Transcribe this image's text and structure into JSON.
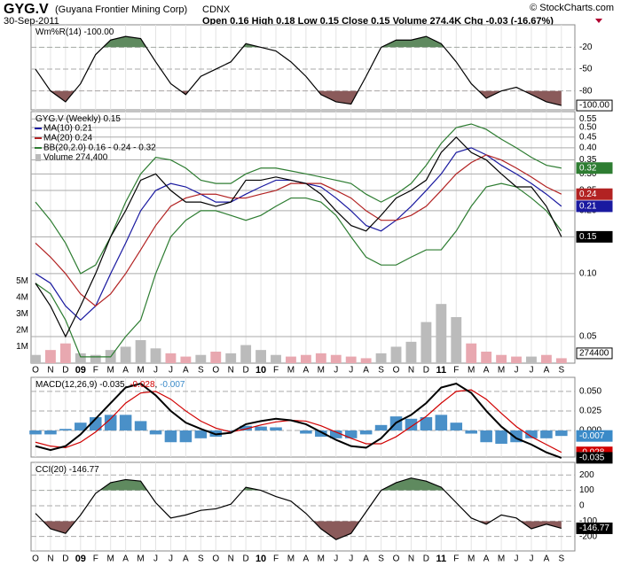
{
  "header": {
    "symbol": "GYG.V",
    "name": "(Guyana Frontier Mining Corp)",
    "exchange": "CDNX",
    "date": "30-Sep-2011",
    "quote": "Open 0.16  High 0.18  Low 0.15  Close 0.15  Volume 274.4K  Chg -0.03 (-16.67%)",
    "credit": "© StockCharts.com"
  },
  "categories": [
    "O",
    "N",
    "D",
    "09",
    "F",
    "M",
    "A",
    "M",
    "J",
    "J",
    "A",
    "S",
    "O",
    "N",
    "D",
    "10",
    "F",
    "M",
    "A",
    "M",
    "J",
    "J",
    "A",
    "S",
    "O",
    "N",
    "D",
    "11",
    "F",
    "M",
    "A",
    "M",
    "J",
    "J",
    "A",
    "S"
  ],
  "chart_data": [
    {
      "type": "line",
      "name": "wr",
      "title": [
        "Wm%R(14) -100.00"
      ],
      "title_colors": [
        "#000000"
      ],
      "ylim": [
        -106,
        11
      ],
      "yticks": [
        -20,
        -50,
        -80
      ],
      "series": [
        {
          "name": "Wm%R(14)",
          "color": "#000000",
          "values": [
            -50,
            -80,
            -95,
            -70,
            -30,
            -10,
            -5,
            -8,
            -40,
            -70,
            -85,
            -60,
            -50,
            -40,
            -15,
            -20,
            -25,
            -40,
            -60,
            -85,
            -95,
            -98,
            -60,
            -20,
            -10,
            -10,
            -5,
            -15,
            -40,
            -70,
            -90,
            -80,
            -75,
            -85,
            -95,
            -100
          ]
        }
      ],
      "tags": [
        {
          "value": -100,
          "label": "-100.00",
          "color": "#ffffff"
        }
      ]
    },
    {
      "type": "line",
      "name": "price",
      "log_scale": true,
      "title": [
        "GYG.V (Weekly) 0.15"
      ],
      "title_colors": [
        "#000000"
      ],
      "ylim": [
        0.0373,
        0.596
      ],
      "yticks": [
        0.55,
        {
          "value": 0.5,
          "label": "0.50"
        },
        0.45,
        {
          "value": 0.4,
          "label": "0.40"
        },
        0.35,
        {
          "value": 0.3,
          "label": "0.30"
        },
        0.25,
        {
          "value": 0.2,
          "label": "0.20"
        },
        0.15,
        {
          "value": 0.1,
          "label": "0.10"
        },
        0.05
      ],
      "series": [
        {
          "name": "MA(10) 0.21",
          "color": "#1a1aa0",
          "values": [
            0.1,
            0.09,
            0.07,
            0.06,
            0.07,
            0.1,
            0.14,
            0.2,
            0.25,
            0.27,
            0.26,
            0.24,
            0.22,
            0.22,
            0.24,
            0.26,
            0.28,
            0.28,
            0.27,
            0.26,
            0.23,
            0.2,
            0.17,
            0.16,
            0.18,
            0.21,
            0.25,
            0.3,
            0.38,
            0.4,
            0.37,
            0.33,
            0.3,
            0.27,
            0.24,
            0.21
          ]
        },
        {
          "name": "MA(20) 0.24",
          "color": "#b22222",
          "values": [
            0.14,
            0.12,
            0.1,
            0.08,
            0.07,
            0.08,
            0.1,
            0.13,
            0.17,
            0.21,
            0.23,
            0.24,
            0.24,
            0.23,
            0.23,
            0.24,
            0.25,
            0.27,
            0.27,
            0.27,
            0.25,
            0.23,
            0.2,
            0.18,
            0.18,
            0.19,
            0.21,
            0.25,
            0.3,
            0.34,
            0.37,
            0.35,
            0.32,
            0.29,
            0.26,
            0.24
          ]
        },
        {
          "name": "BB(20,2.0) 0.16 - 0.24 - 0.32",
          "color": "#2e7d32",
          "values": [
            0.22,
            0.18,
            0.14,
            0.1,
            0.11,
            0.15,
            0.22,
            0.3,
            0.36,
            0.35,
            0.32,
            0.28,
            0.27,
            0.27,
            0.3,
            0.32,
            0.32,
            0.31,
            0.3,
            0.29,
            0.28,
            0.27,
            0.24,
            0.22,
            0.24,
            0.27,
            0.33,
            0.42,
            0.5,
            0.52,
            0.49,
            0.44,
            0.4,
            0.36,
            0.33,
            0.32
          ]
        },
        {
          "name": "BB lower",
          "legend": false,
          "color": "#2e7d32",
          "values": [
            0.09,
            0.08,
            0.06,
            0.04,
            0.04,
            0.04,
            0.05,
            0.06,
            0.1,
            0.15,
            0.18,
            0.2,
            0.2,
            0.19,
            0.18,
            0.19,
            0.21,
            0.23,
            0.23,
            0.22,
            0.19,
            0.15,
            0.12,
            0.11,
            0.11,
            0.12,
            0.13,
            0.13,
            0.16,
            0.21,
            0.26,
            0.27,
            0.26,
            0.23,
            0.2,
            0.16
          ]
        },
        {
          "name": "GYG.V",
          "legend": false,
          "color": "#000000",
          "values": [
            0.09,
            0.07,
            0.05,
            0.07,
            0.1,
            0.15,
            0.2,
            0.28,
            0.3,
            0.25,
            0.22,
            0.22,
            0.21,
            0.22,
            0.28,
            0.28,
            0.29,
            0.28,
            0.27,
            0.24,
            0.2,
            0.17,
            0.16,
            0.19,
            0.23,
            0.25,
            0.28,
            0.38,
            0.45,
            0.38,
            0.35,
            0.3,
            0.26,
            0.26,
            0.21,
            0.15
          ]
        }
      ],
      "volume": {
        "name": "Volume 274,400",
        "ylim": [
          0,
          15.3
        ],
        "yticks": [
          {
            "value": 1,
            "label": "1M"
          },
          {
            "value": 2,
            "label": "2M"
          },
          {
            "value": 3,
            "label": "3M"
          },
          {
            "value": 4,
            "label": "4M"
          },
          {
            "value": 5,
            "label": "5M"
          }
        ],
        "values": [
          0.5,
          0.8,
          1.2,
          0.6,
          0.5,
          0.8,
          1.0,
          1.4,
          0.9,
          0.6,
          0.4,
          0.5,
          0.7,
          0.6,
          1.1,
          0.8,
          0.5,
          0.4,
          0.5,
          0.6,
          0.5,
          0.4,
          0.3,
          0.6,
          1.0,
          1.3,
          2.5,
          3.6,
          2.8,
          1.2,
          0.7,
          0.5,
          0.4,
          0.4,
          0.5,
          0.3
        ],
        "tag": {
          "value": 0.2744,
          "label": "274400"
        }
      },
      "tags": [
        {
          "value": 0.32,
          "label": "0.32",
          "color": "#2e7d32"
        },
        {
          "value": 0.24,
          "label": "0.24",
          "color": "#b22222"
        },
        {
          "value": 0.21,
          "label": "0.21",
          "color": "#1a1aa0"
        },
        {
          "value": 0.15,
          "label": "0.15",
          "color": "#000000"
        }
      ]
    },
    {
      "type": "line",
      "name": "macd",
      "title": [
        "MACD(12,26,9) -0.035, ",
        "-0.028",
        ", ",
        "-0.007"
      ],
      "title_colors": [
        "#000000",
        "#d00000",
        "#000000",
        "#3a8ac8"
      ],
      "ylim": [
        -0.034,
        0.068
      ],
      "yticks": [
        {
          "value": 0.05,
          "label": "0.050"
        },
        {
          "value": 0.025,
          "label": "0.025"
        },
        {
          "value": 0,
          "label": "0.000"
        }
      ],
      "series": [
        {
          "name": "Histogram",
          "style": "histogram",
          "color": "#4a90c8",
          "values": [
            -0.005,
            -0.005,
            0.002,
            0.01,
            0.017,
            0.02,
            0.02,
            0.012,
            -0.005,
            -0.015,
            -0.015,
            -0.01,
            -0.008,
            -0.001,
            0.006,
            0.005,
            0.004,
            0,
            -0.004,
            -0.008,
            -0.01,
            -0.01,
            -0.005,
            0.007,
            0.018,
            0.015,
            0.017,
            0.02,
            0.01,
            -0.004,
            -0.015,
            -0.017,
            -0.015,
            -0.01,
            -0.01,
            -0.007
          ]
        },
        {
          "name": "Signal",
          "color": "#d00000",
          "values": [
            -0.015,
            -0.02,
            -0.022,
            -0.015,
            -0.002,
            0.015,
            0.035,
            0.048,
            0.05,
            0.04,
            0.025,
            0.012,
            0.003,
            -0.002,
            0.002,
            0.007,
            0.011,
            0.013,
            0.012,
            0.006,
            -0.002,
            -0.01,
            -0.017,
            -0.017,
            -0.008,
            0.005,
            0.018,
            0.035,
            0.05,
            0.052,
            0.04,
            0.022,
            0.005,
            -0.008,
            -0.018,
            -0.028
          ]
        },
        {
          "name": "MACD",
          "color": "#000000",
          "width": 2,
          "values": [
            -0.02,
            -0.025,
            -0.02,
            -0.005,
            0.015,
            0.035,
            0.055,
            0.06,
            0.045,
            0.025,
            0.01,
            0.002,
            -0.005,
            -0.003,
            0.008,
            0.012,
            0.015,
            0.013,
            0.008,
            -0.002,
            -0.012,
            -0.02,
            -0.022,
            -0.01,
            0.01,
            0.02,
            0.035,
            0.055,
            0.06,
            0.048,
            0.025,
            0.005,
            -0.01,
            -0.018,
            -0.028,
            -0.035
          ]
        }
      ],
      "tags": [
        {
          "value": -0.007,
          "label": "-0.007",
          "color": "#3a8ac8"
        },
        {
          "value": -0.028,
          "label": "-0.028",
          "color": "#d00000"
        },
        {
          "value": -0.035,
          "label": "-0.035",
          "color": "#000000"
        }
      ]
    },
    {
      "type": "line",
      "name": "cci",
      "title": [
        "CCI(20) -146.77"
      ],
      "title_colors": [
        "#000000"
      ],
      "ylim": [
        -294,
        282
      ],
      "yticks": [
        200,
        100,
        0,
        -100,
        -200
      ],
      "series": [
        {
          "name": "CCI(20)",
          "color": "#000000",
          "values": [
            -50,
            -150,
            -180,
            -60,
            80,
            150,
            170,
            160,
            20,
            -80,
            -60,
            -30,
            -20,
            10,
            120,
            100,
            60,
            30,
            -50,
            -150,
            -220,
            -180,
            -40,
            100,
            150,
            180,
            160,
            120,
            20,
            -80,
            -120,
            -60,
            -80,
            -150,
            -120,
            -146.77
          ]
        }
      ],
      "tags": [
        {
          "value": -146.77,
          "label": "-146.77",
          "color": "#000000"
        }
      ]
    }
  ]
}
